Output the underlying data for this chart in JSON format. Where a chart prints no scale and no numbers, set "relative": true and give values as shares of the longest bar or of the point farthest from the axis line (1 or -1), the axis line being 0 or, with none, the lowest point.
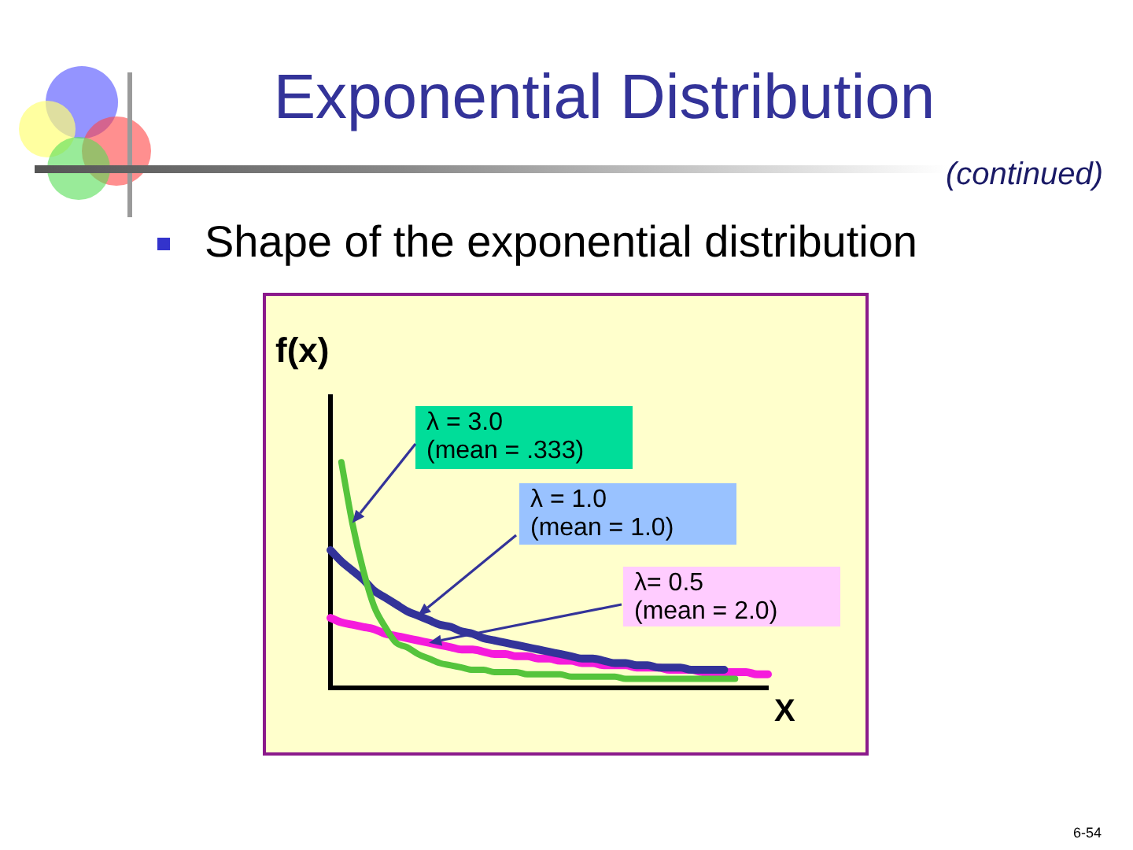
{
  "chart_data": {
    "type": "line",
    "title": "Exponential Distribution",
    "subtitle": "Shape of the exponential distribution",
    "xlabel": "X",
    "ylabel": "f(x)",
    "annotations": [
      "(continued)",
      "6-54"
    ],
    "relative": true,
    "tick_labels": false,
    "marker": "none",
    "categories": [
      null,
      null,
      null,
      null,
      null,
      null,
      null,
      null,
      null,
      null,
      null,
      null,
      null,
      null,
      null,
      null,
      null,
      null,
      null,
      null,
      null,
      null,
      null,
      null,
      null,
      null,
      null,
      null,
      null,
      null,
      null,
      null,
      null,
      null,
      null,
      null,
      null,
      null,
      null,
      null,
      null
    ],
    "series": [
      {
        "name": "λ = 3.0\n(mean = .333)",
        "color": "#55c43c",
        "values": [
          null,
          1.0,
          0.73,
          0.52,
          0.36,
          0.27,
          0.2,
          0.18,
          0.15,
          0.13,
          0.11,
          0.1,
          0.09,
          0.08,
          0.08,
          0.07,
          0.07,
          0.07,
          0.06,
          0.06,
          0.06,
          0.06,
          0.05,
          0.05,
          0.05,
          0.05,
          0.05,
          0.04,
          0.04,
          0.04,
          0.04,
          0.04,
          0.04,
          0.04,
          0.04,
          0.04,
          0.04,
          0.04,
          null,
          null,
          null
        ]
      },
      {
        "name": "λ = 1.0\n(mean = 1.0)",
        "color": "#333399",
        "values": [
          0.61,
          0.56,
          0.52,
          0.48,
          0.43,
          0.4,
          0.37,
          0.34,
          0.32,
          0.3,
          0.28,
          0.27,
          0.25,
          0.24,
          0.22,
          0.21,
          0.2,
          0.19,
          0.18,
          0.17,
          0.16,
          0.15,
          0.14,
          0.13,
          0.13,
          0.12,
          0.11,
          0.11,
          0.1,
          0.1,
          0.09,
          0.09,
          0.09,
          0.08,
          0.08,
          0.08,
          0.08,
          null,
          null,
          null,
          null
        ]
      },
      {
        "name": "λ= 0.5\n(mean = 2.0)",
        "color": "#f51bdc",
        "values": [
          0.31,
          0.29,
          0.28,
          0.27,
          0.26,
          0.24,
          0.23,
          0.22,
          0.21,
          0.2,
          0.19,
          0.18,
          0.17,
          0.17,
          0.16,
          0.15,
          0.15,
          0.14,
          0.14,
          0.13,
          0.13,
          0.12,
          0.12,
          0.11,
          0.11,
          0.1,
          0.1,
          0.1,
          0.09,
          0.09,
          0.09,
          0.08,
          0.08,
          0.08,
          0.07,
          0.07,
          0.07,
          0.07,
          0.07,
          0.06,
          0.06
        ]
      }
    ]
  }
}
